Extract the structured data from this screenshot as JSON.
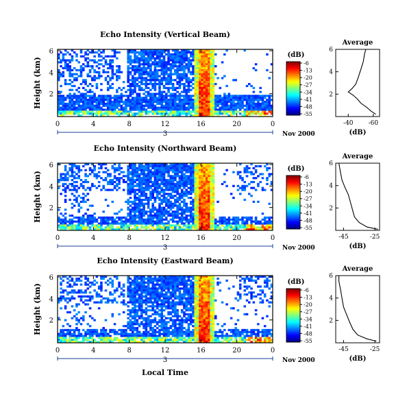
{
  "chart_data": [
    {
      "type": "heatmap",
      "title": "Echo Intensity (Vertical Beam)",
      "ylabel": "Height (km)",
      "y_ticks": [
        "6",
        "4",
        "2"
      ],
      "x_ticks": [
        "0",
        "4",
        "8",
        "12",
        "16",
        "20",
        "0"
      ],
      "day_label": "3",
      "month_year_label": "Nov 2000",
      "xlim": [
        0,
        24
      ],
      "ylim": [
        0,
        6
      ],
      "colorbar": {
        "unit_label": "(dB)",
        "ticks": [
          "-6",
          "-13",
          "-20",
          "-27",
          "-34",
          "-41",
          "-48",
          "-55"
        ]
      },
      "average_profile": {
        "title": "Average",
        "xlabel": "(dB)",
        "x_ticks": [
          "-40",
          "-60"
        ],
        "y_ticks": [
          "6",
          "4",
          "2"
        ],
        "xlim": [
          -30,
          -65
        ],
        "ylim": [
          0,
          6
        ],
        "points": [
          [
            -62,
            0.2
          ],
          [
            -58,
            0.5
          ],
          [
            -55,
            0.8
          ],
          [
            -50,
            1.2
          ],
          [
            -47,
            1.6
          ],
          [
            -44,
            1.9
          ],
          [
            -40,
            2.2
          ],
          [
            -43,
            2.5
          ],
          [
            -46,
            2.9
          ],
          [
            -48,
            3.5
          ],
          [
            -50,
            4.2
          ],
          [
            -52,
            4.9
          ],
          [
            -53,
            5.6
          ],
          [
            -54,
            6.0
          ]
        ]
      }
    },
    {
      "type": "heatmap",
      "title": "Echo Intensity (Northward Beam)",
      "ylabel": "Height (km)",
      "y_ticks": [
        "6",
        "4",
        "2"
      ],
      "x_ticks": [
        "0",
        "4",
        "8",
        "12",
        "16",
        "20",
        "0"
      ],
      "day_label": "3",
      "month_year_label": "Nov 2000",
      "xlim": [
        0,
        24
      ],
      "ylim": [
        0,
        6
      ],
      "colorbar": {
        "unit_label": "(dB)",
        "ticks": [
          "-6",
          "-13",
          "-20",
          "-27",
          "-34",
          "-41",
          "-48",
          "-55"
        ]
      },
      "average_profile": {
        "title": "Average",
        "xlabel": "(dB)",
        "x_ticks": [
          "-45",
          "-25"
        ],
        "y_ticks": [
          "6",
          "4",
          "2"
        ],
        "xlim": [
          -50,
          -22
        ],
        "ylim": [
          0,
          6
        ],
        "points": [
          [
            -23,
            0.1
          ],
          [
            -30,
            0.3
          ],
          [
            -35,
            0.7
          ],
          [
            -38,
            1.2
          ],
          [
            -39,
            1.7
          ],
          [
            -40,
            2.2
          ],
          [
            -41,
            2.7
          ],
          [
            -42,
            3.2
          ],
          [
            -44,
            3.8
          ],
          [
            -46,
            4.5
          ],
          [
            -47,
            5.2
          ],
          [
            -48,
            6.0
          ]
        ]
      }
    },
    {
      "type": "heatmap",
      "title": "Echo Intensity (Eastward Beam)",
      "ylabel": "Height (km)",
      "y_ticks": [
        "6",
        "4",
        "2"
      ],
      "x_ticks": [
        "0",
        "4",
        "8",
        "12",
        "16",
        "20",
        "0"
      ],
      "day_label": "3",
      "month_year_label": "Nov 2000",
      "xlabel": "Local Time",
      "xlim": [
        0,
        24
      ],
      "ylim": [
        0,
        6
      ],
      "colorbar": {
        "unit_label": "(dB)",
        "ticks": [
          "-6",
          "-13",
          "-20",
          "-27",
          "-34",
          "-41",
          "-48",
          "-55"
        ]
      },
      "average_profile": {
        "title": "Average",
        "xlabel": "(dB)",
        "x_ticks": [
          "-45",
          "-25"
        ],
        "y_ticks": [
          "6",
          "4",
          "2"
        ],
        "xlim": [
          -50,
          -22
        ],
        "ylim": [
          0,
          6
        ],
        "points": [
          [
            -24,
            0.15
          ],
          [
            -30,
            0.35
          ],
          [
            -36,
            0.7
          ],
          [
            -39,
            1.2
          ],
          [
            -41,
            1.8
          ],
          [
            -43,
            2.5
          ],
          [
            -45,
            3.2
          ],
          [
            -46,
            4.0
          ],
          [
            -47,
            4.8
          ],
          [
            -48,
            5.5
          ],
          [
            -48,
            6.0
          ]
        ]
      }
    }
  ]
}
